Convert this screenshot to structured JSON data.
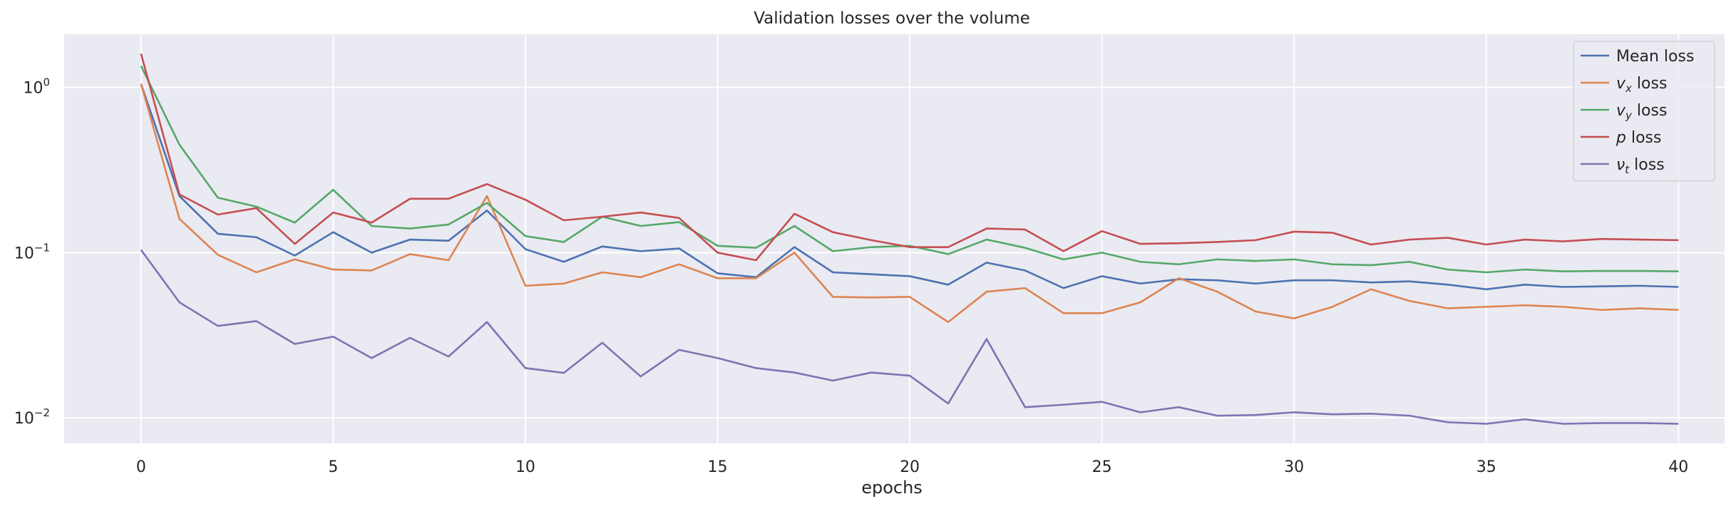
{
  "chart_data": {
    "type": "line",
    "title": "Validation losses over the volume",
    "xlabel": "epochs",
    "ylabel": "",
    "xlim": [
      -2,
      41.2
    ],
    "ylim": [
      0.007,
      2.1
    ],
    "yscale": "log",
    "grid": true,
    "legend_position": "top-right",
    "x_ticks": [
      0,
      5,
      10,
      15,
      20,
      25,
      30,
      35,
      40
    ],
    "y_ticks": [
      {
        "value": 0.01,
        "base": "10",
        "exp": "−2"
      },
      {
        "value": 0.1,
        "base": "10",
        "exp": "−1"
      },
      {
        "value": 1,
        "base": "10",
        "exp": "0"
      }
    ],
    "x": [
      0,
      1,
      2,
      3,
      4,
      5,
      6,
      7,
      8,
      9,
      10,
      11,
      12,
      13,
      14,
      15,
      16,
      17,
      18,
      19,
      20,
      21,
      22,
      23,
      24,
      25,
      26,
      27,
      28,
      29,
      30,
      31,
      32,
      33,
      34,
      35,
      36,
      37,
      38,
      39,
      40
    ],
    "series": [
      {
        "name": "Mean loss",
        "label_parts": [
          {
            "t": "Mean loss",
            "s": ""
          }
        ],
        "color": "#4c72b0",
        "values": [
          1.05,
          0.22,
          0.13,
          0.124,
          0.096,
          0.133,
          0.1,
          0.12,
          0.118,
          0.18,
          0.105,
          0.088,
          0.109,
          0.102,
          0.106,
          0.075,
          0.071,
          0.108,
          0.076,
          0.074,
          0.072,
          0.064,
          0.087,
          0.078,
          0.061,
          0.072,
          0.065,
          0.069,
          0.068,
          0.065,
          0.068,
          0.068,
          0.066,
          0.067,
          0.064,
          0.06,
          0.064,
          0.062,
          0.0625,
          0.063,
          0.062
        ]
      },
      {
        "name": "v_x loss",
        "label_parts": [
          {
            "t": "v",
            "s": "it"
          },
          {
            "t": "x",
            "s": "sub"
          },
          {
            "t": " loss",
            "s": ""
          }
        ],
        "color": "#dd8452",
        "values": [
          1.05,
          0.16,
          0.097,
          0.076,
          0.091,
          0.079,
          0.078,
          0.098,
          0.09,
          0.22,
          0.063,
          0.065,
          0.076,
          0.071,
          0.085,
          0.07,
          0.07,
          0.1,
          0.054,
          0.0535,
          0.054,
          0.038,
          0.058,
          0.061,
          0.043,
          0.043,
          0.05,
          0.07,
          0.058,
          0.044,
          0.04,
          0.047,
          0.06,
          0.051,
          0.046,
          0.047,
          0.048,
          0.047,
          0.045,
          0.046,
          0.045
        ]
      },
      {
        "name": "v_y loss",
        "label_parts": [
          {
            "t": "v",
            "s": "it"
          },
          {
            "t": "y",
            "s": "sub"
          },
          {
            "t": " loss",
            "s": ""
          }
        ],
        "color": "#55a868",
        "values": [
          1.35,
          0.45,
          0.215,
          0.19,
          0.152,
          0.24,
          0.145,
          0.14,
          0.148,
          0.2,
          0.126,
          0.116,
          0.165,
          0.145,
          0.153,
          0.11,
          0.107,
          0.145,
          0.102,
          0.108,
          0.11,
          0.098,
          0.12,
          0.107,
          0.091,
          0.1,
          0.088,
          0.085,
          0.091,
          0.089,
          0.091,
          0.085,
          0.084,
          0.088,
          0.079,
          0.076,
          0.079,
          0.077,
          0.0775,
          0.0775,
          0.077
        ]
      },
      {
        "name": "p loss",
        "label_parts": [
          {
            "t": "p",
            "s": "it"
          },
          {
            "t": " loss",
            "s": ""
          }
        ],
        "color": "#c44e52",
        "values": [
          1.6,
          0.225,
          0.17,
          0.186,
          0.113,
          0.175,
          0.152,
          0.212,
          0.212,
          0.26,
          0.209,
          0.157,
          0.165,
          0.175,
          0.162,
          0.1,
          0.09,
          0.172,
          0.133,
          0.119,
          0.108,
          0.108,
          0.14,
          0.138,
          0.102,
          0.135,
          0.113,
          0.114,
          0.116,
          0.119,
          0.134,
          0.132,
          0.112,
          0.12,
          0.123,
          0.112,
          0.12,
          0.117,
          0.121,
          0.12,
          0.119
        ]
      },
      {
        "name": "ν_t loss",
        "label_parts": [
          {
            "t": "ν",
            "s": "it"
          },
          {
            "t": "t",
            "s": "sub"
          },
          {
            "t": " loss",
            "s": ""
          }
        ],
        "color": "#8172b3",
        "values": [
          0.104,
          0.05,
          0.036,
          0.0385,
          0.028,
          0.031,
          0.023,
          0.0305,
          0.0235,
          0.038,
          0.02,
          0.0187,
          0.0285,
          0.0178,
          0.0258,
          0.023,
          0.02,
          0.0188,
          0.0168,
          0.0188,
          0.018,
          0.0122,
          0.03,
          0.0116,
          0.012,
          0.0125,
          0.0108,
          0.0116,
          0.0103,
          0.0104,
          0.0108,
          0.0105,
          0.0106,
          0.0103,
          0.0094,
          0.0092,
          0.0098,
          0.0092,
          0.0093,
          0.0093,
          0.0092
        ]
      }
    ]
  }
}
